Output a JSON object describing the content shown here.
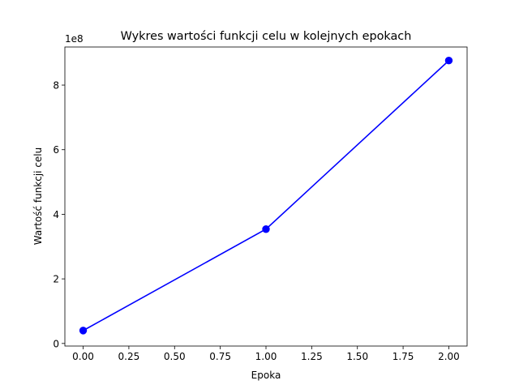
{
  "chart_data": {
    "type": "line",
    "title": "Wykres wartości funkcji celu w kolejnych epokach",
    "xlabel": "Epoka",
    "ylabel": "Wartość funkcji celu",
    "y_offset_label": "1e8",
    "x": [
      0,
      1,
      2
    ],
    "series": [
      {
        "values": [
          40000000,
          354000000,
          876000000
        ],
        "color": "#0000ff",
        "marker": "circle"
      }
    ],
    "xlim": [
      -0.1,
      2.1
    ],
    "ylim": [
      -8000000,
      918000000
    ],
    "x_ticks": [
      0.0,
      0.25,
      0.5,
      0.75,
      1.0,
      1.25,
      1.5,
      1.75,
      2.0
    ],
    "x_tick_labels": [
      "0.00",
      "0.25",
      "0.50",
      "0.75",
      "1.00",
      "1.25",
      "1.50",
      "1.75",
      "2.00"
    ],
    "y_ticks": [
      0,
      200000000,
      400000000,
      600000000,
      800000000
    ],
    "y_tick_labels": [
      "0",
      "2",
      "4",
      "6",
      "8"
    ],
    "grid": false,
    "legend": "none"
  }
}
